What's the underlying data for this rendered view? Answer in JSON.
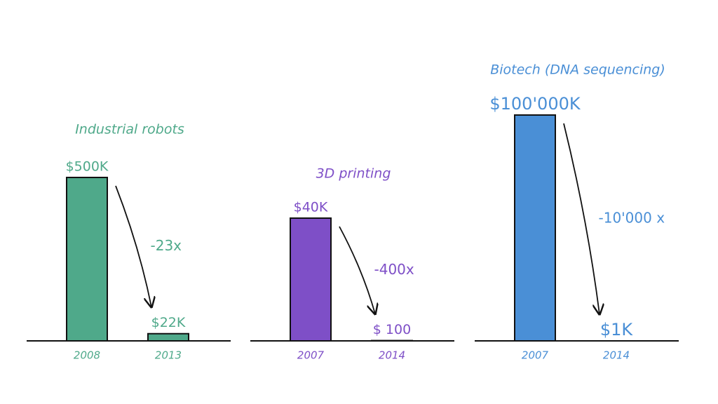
{
  "chart_data": [
    {
      "type": "bar",
      "title": "Industrial robots",
      "categories": [
        "2008",
        "2013"
      ],
      "values": [
        500000,
        22000
      ],
      "value_labels": [
        "$500K",
        "$22K"
      ],
      "annotation": "-23x",
      "color": "#4fa98a"
    },
    {
      "type": "bar",
      "title": "3D printing",
      "categories": [
        "2007",
        "2014"
      ],
      "values": [
        40000,
        100
      ],
      "value_labels": [
        "$40K",
        "$ 100"
      ],
      "annotation": "-400x",
      "color": "#7e4fc7"
    },
    {
      "type": "bar",
      "title": "Biotech (DNA sequencing)",
      "categories": [
        "2007",
        "2014"
      ],
      "values": [
        100000000,
        1000
      ],
      "value_labels": [
        "$100'000K",
        "$1K"
      ],
      "annotation": "-10'000 x",
      "color": "#4a8fd6"
    }
  ]
}
